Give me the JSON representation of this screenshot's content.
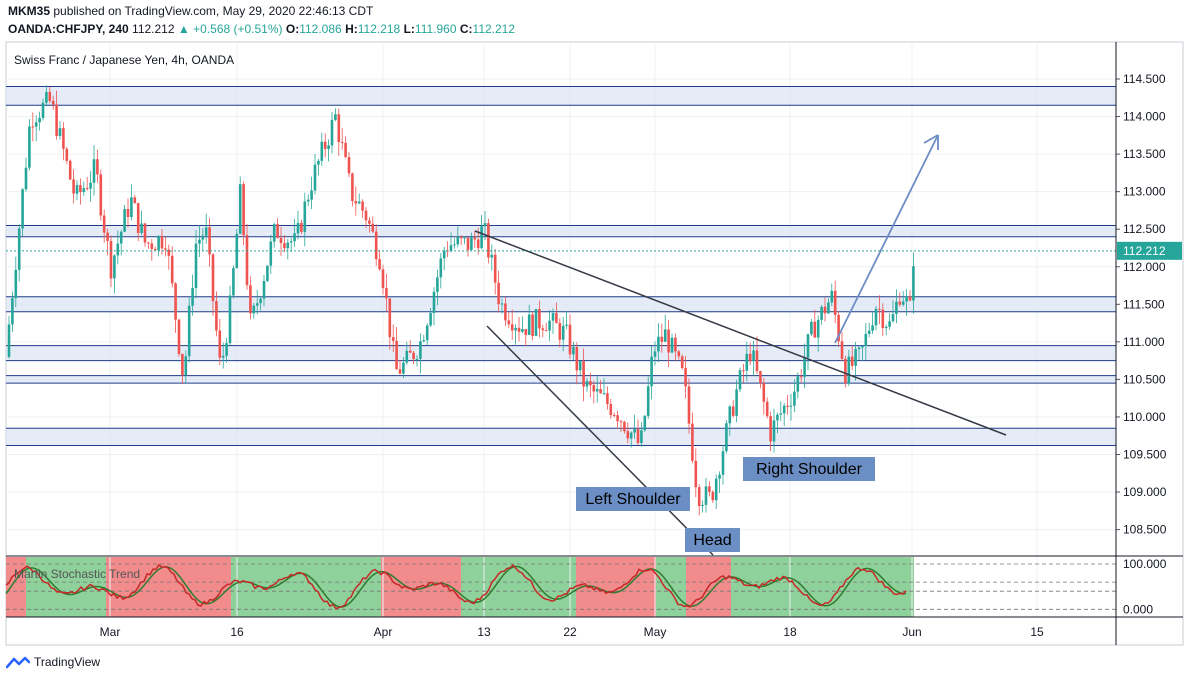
{
  "header": {
    "author": "MKM35",
    "published_text": "published on TradingView.com, May 29, 2020 22:46:13 CDT",
    "symbol": "OANDA:CHFJPY, 240",
    "last": "112.212",
    "change": "+0.568 (+0.51%)",
    "o_label": "O:",
    "o_value": "112.086",
    "h_label": "H:",
    "h_value": "112.218",
    "l_label": "L:",
    "l_value": "111.960",
    "c_label": "C:",
    "c_value": "112.212"
  },
  "chart_title": "Swiss Franc / Japanese Yen, 4h, OANDA",
  "footer": {
    "brand": "TradingView"
  },
  "colors": {
    "up": "#26a69a",
    "down": "#ef5350",
    "zone_fill": "#dce6f5",
    "zone_line": "#1f3c88",
    "trend_line": "#363a45",
    "arrow": "#6e8cc6",
    "label_bg": "#6b8ec4",
    "osc_red": "#f28b8b",
    "osc_green": "#8fd19a"
  },
  "chart_data": [
    {
      "type": "candlestick",
      "title": "Swiss Franc / Japanese Yen, 4h, OANDA",
      "y_ticks": [
        "114.500",
        "114.000",
        "113.500",
        "113.000",
        "112.500",
        "112.000",
        "111.500",
        "111.000",
        "110.500",
        "110.000",
        "109.500",
        "109.000",
        "108.500"
      ],
      "ylim": [
        108.2,
        115.0
      ],
      "x_ticks": [
        "Mar",
        "16",
        "Apr",
        "13",
        "22",
        "May",
        "18",
        "Jun",
        "15"
      ],
      "last_price_label": "112.212",
      "horizontal_zones": [
        [
          114.15,
          114.4
        ],
        [
          112.4,
          112.55
        ],
        [
          111.4,
          111.6
        ],
        [
          110.75,
          110.95
        ],
        [
          110.45,
          110.55
        ],
        [
          109.62,
          109.85
        ]
      ],
      "price_path": [
        [
          0,
          110.8
        ],
        [
          25,
          114.0
        ],
        [
          45,
          114.2
        ],
        [
          70,
          112.9
        ],
        [
          90,
          113.3
        ],
        [
          105,
          112.0
        ],
        [
          125,
          112.9
        ],
        [
          140,
          112.3
        ],
        [
          160,
          112.4
        ],
        [
          178,
          110.5
        ],
        [
          190,
          112.3
        ],
        [
          200,
          112.5
        ],
        [
          215,
          110.6
        ],
        [
          225,
          111.5
        ],
        [
          235,
          113.0
        ],
        [
          245,
          111.2
        ],
        [
          270,
          112.5
        ],
        [
          290,
          112.3
        ],
        [
          305,
          113.1
        ],
        [
          330,
          114.0
        ],
        [
          345,
          113.0
        ],
        [
          360,
          112.7
        ],
        [
          375,
          112.1
        ],
        [
          390,
          110.6
        ],
        [
          400,
          110.7
        ],
        [
          415,
          111.0
        ],
        [
          440,
          112.3
        ],
        [
          465,
          112.3
        ],
        [
          478,
          112.5
        ],
        [
          495,
          111.5
        ],
        [
          515,
          111.2
        ],
        [
          540,
          111.3
        ],
        [
          560,
          111.1
        ],
        [
          580,
          110.4
        ],
        [
          610,
          110.1
        ],
        [
          635,
          109.6
        ],
        [
          648,
          110.9
        ],
        [
          660,
          111.1
        ],
        [
          678,
          110.5
        ],
        [
          692,
          109.0
        ],
        [
          705,
          108.9
        ],
        [
          730,
          110.3
        ],
        [
          745,
          110.9
        ],
        [
          765,
          109.8
        ],
        [
          790,
          110.4
        ],
        [
          808,
          111.2
        ],
        [
          826,
          111.6
        ],
        [
          840,
          110.6
        ],
        [
          855,
          110.8
        ],
        [
          870,
          111.5
        ],
        [
          885,
          111.2
        ],
        [
          895,
          111.7
        ],
        [
          905,
          111.4
        ],
        [
          908,
          112.2
        ]
      ],
      "annotations": [
        {
          "text": "Left Shoulder"
        },
        {
          "text": "Head"
        },
        {
          "text": "Right Shoulder"
        }
      ]
    },
    {
      "type": "oscillator",
      "title": "Martin Stochastic Trend",
      "y_ticks": [
        "100.000",
        "0.000"
      ],
      "ylim": [
        -15,
        115
      ],
      "background_segments": [
        {
          "from": 0,
          "to": 20,
          "color": "red"
        },
        {
          "from": 20,
          "to": 100,
          "color": "green"
        },
        {
          "from": 100,
          "to": 225,
          "color": "red"
        },
        {
          "from": 225,
          "to": 265,
          "color": "green"
        },
        {
          "from": 265,
          "to": 375,
          "color": "green"
        },
        {
          "from": 375,
          "to": 455,
          "color": "red"
        },
        {
          "from": 455,
          "to": 500,
          "color": "green"
        },
        {
          "from": 500,
          "to": 570,
          "color": "green"
        },
        {
          "from": 570,
          "to": 650,
          "color": "red"
        },
        {
          "from": 650,
          "to": 680,
          "color": "green"
        },
        {
          "from": 680,
          "to": 725,
          "color": "red"
        },
        {
          "from": 725,
          "to": 765,
          "color": "green"
        },
        {
          "from": 765,
          "to": 908,
          "color": "green"
        }
      ]
    }
  ]
}
